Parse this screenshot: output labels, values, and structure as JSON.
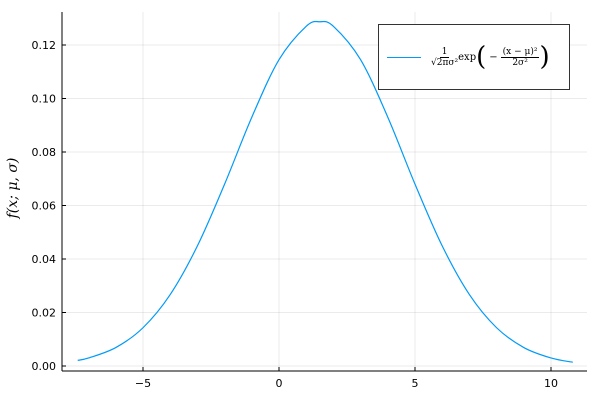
{
  "chart_data": {
    "type": "line",
    "title": "",
    "xlabel": "",
    "ylabel": "f(x; μ, σ)",
    "xlim": [
      -7.9,
      11.2
    ],
    "ylim": [
      -0.002,
      0.133
    ],
    "xticks": [
      -5,
      0,
      5,
      10
    ],
    "xtick_labels": [
      "−5",
      "0",
      "5",
      "10"
    ],
    "yticks": [
      0,
      0.02,
      0.04,
      0.06,
      0.08,
      0.1,
      0.12
    ],
    "ytick_labels": [
      "0.00",
      "0.02",
      "0.04",
      "0.06",
      "0.08",
      "0.10",
      "0.12"
    ],
    "grid": true,
    "legend_placement": "top-right",
    "series": [
      {
        "name": "1/√(2πσ²) exp(−(x−μ)²/(2σ²))",
        "color": "#009af9",
        "x": [
          -7.4,
          -7,
          -6,
          -5,
          -4,
          -3,
          -2,
          -1,
          0,
          1,
          1.5,
          2,
          3,
          4,
          5,
          6,
          7,
          8,
          9,
          10,
          10.8
        ],
        "y": [
          0.0021,
          0.003,
          0.0069,
          0.0143,
          0.0267,
          0.0449,
          0.068,
          0.093,
          0.1145,
          0.127,
          0.1287,
          0.127,
          0.1145,
          0.093,
          0.068,
          0.0449,
          0.0267,
          0.0143,
          0.0069,
          0.003,
          0.0014
        ]
      }
    ],
    "legend": {
      "num": "1",
      "den": "√2πσ²",
      "exp": "exp",
      "inner_prefix": "−",
      "inner_num": "(x − μ)²",
      "inner_den": "2σ²"
    }
  }
}
